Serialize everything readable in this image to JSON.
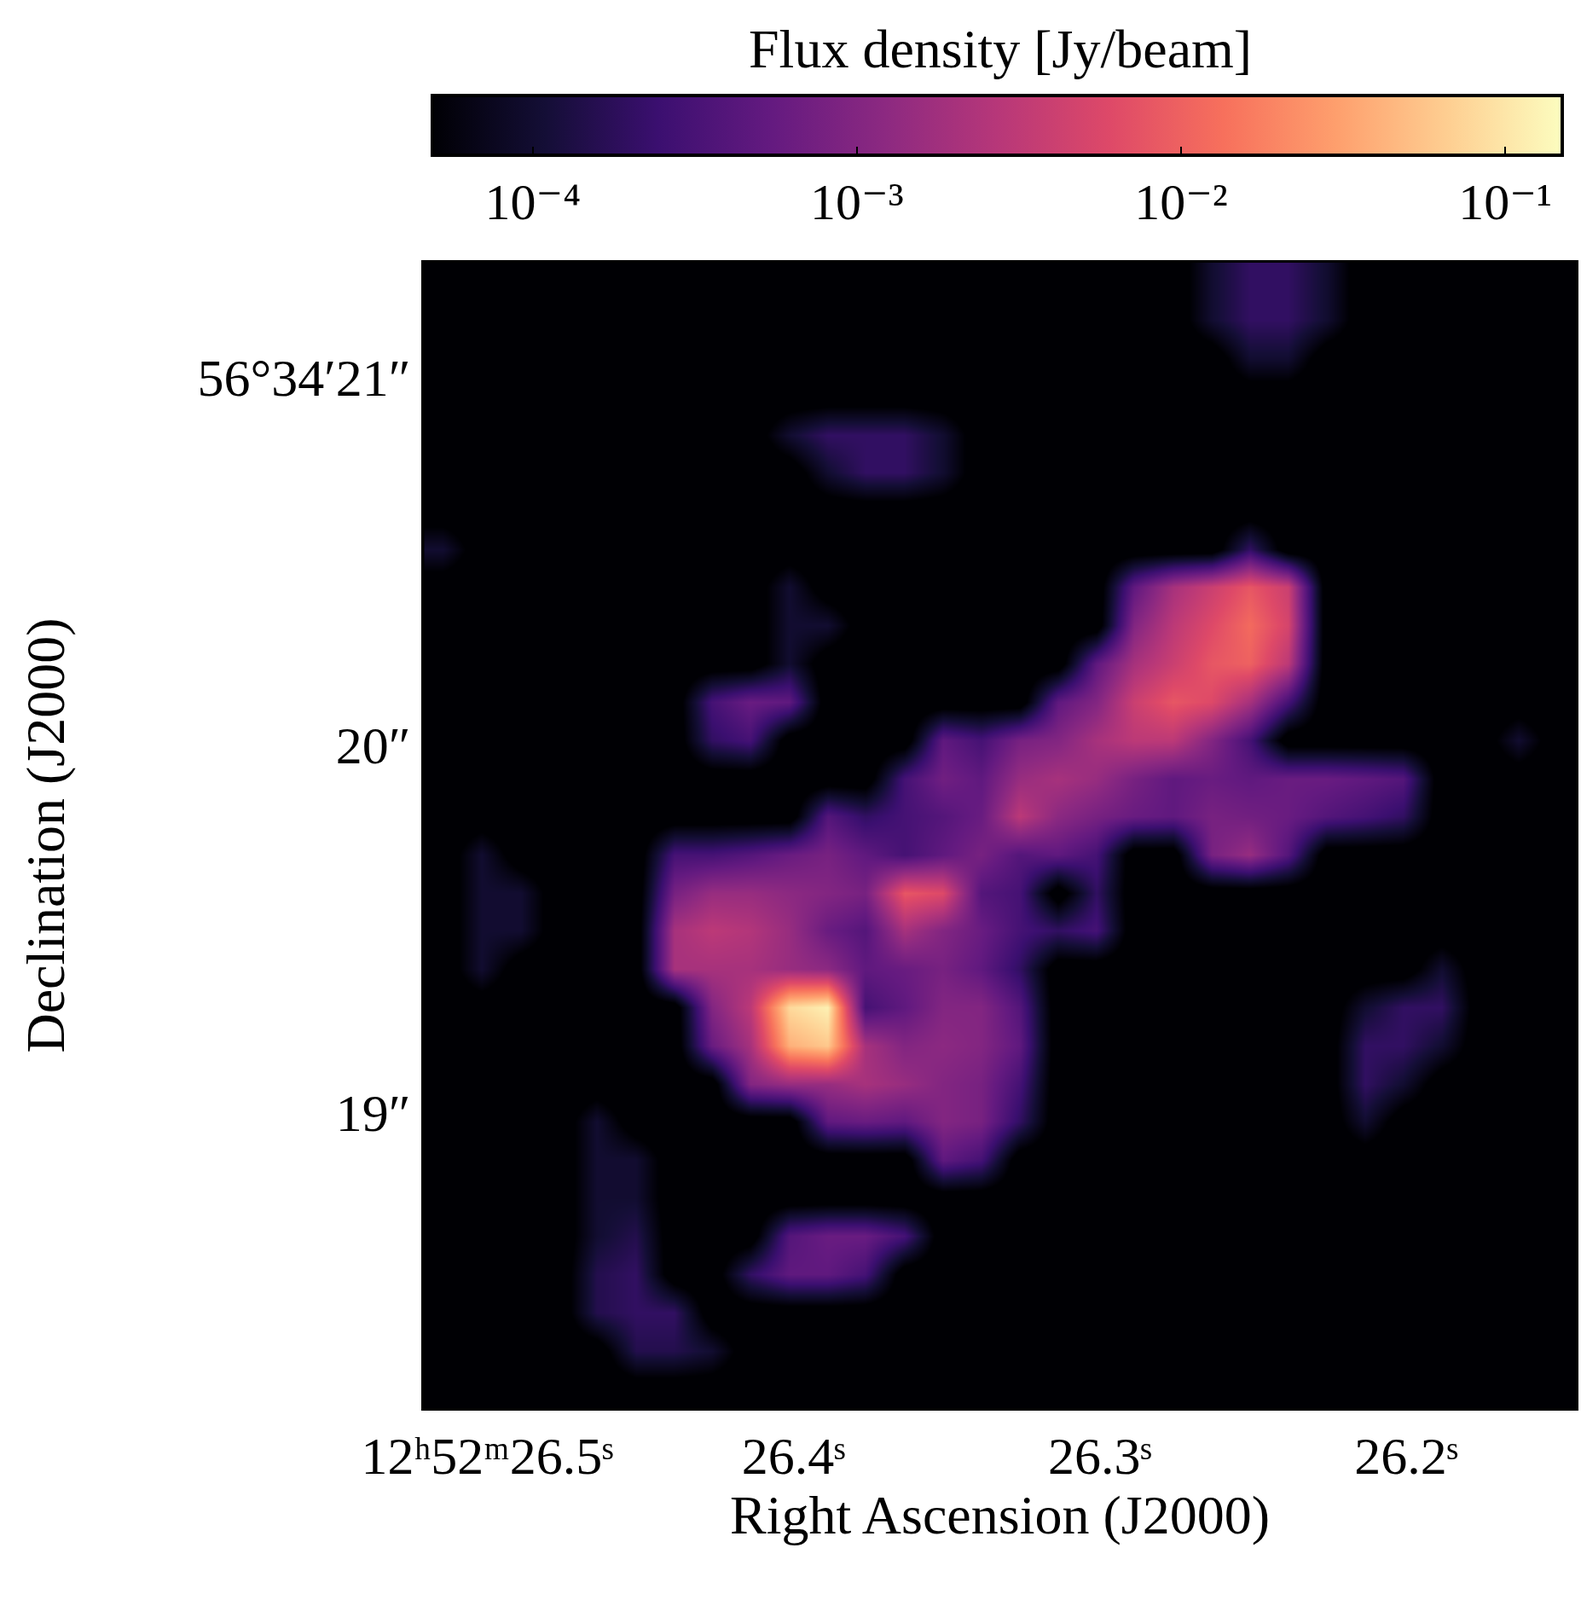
{
  "chart_data": {
    "type": "heatmap",
    "x_label": "Right Ascension (J2000)",
    "y_label": "Declination (J2000)",
    "xlim": [
      26.5207,
      26.1446
    ],
    "ylim": [
      18.195,
      21.312
    ],
    "xticks": [
      {
        "value": 26.5,
        "label": "12ʰ52ᵐ26.5ˢ"
      },
      {
        "value": 26.4,
        "label": "26.4ˢ"
      },
      {
        "value": 26.3,
        "label": "26.3ˢ"
      },
      {
        "value": 26.2,
        "label": "26.2ˢ"
      }
    ],
    "yticks": [
      {
        "value": 21,
        "label": "56°34′21″"
      },
      {
        "value": 20,
        "label": "20″"
      },
      {
        "value": 19,
        "label": "19″"
      }
    ],
    "grid": false,
    "x": [
      26.5143,
      26.5018,
      26.4892,
      26.4767,
      26.4642,
      26.4516,
      26.4391,
      26.4266,
      26.4141,
      26.4015,
      26.389,
      26.3765,
      26.3639,
      26.3514,
      26.3389,
      26.3263,
      26.3138,
      26.3013,
      26.2888,
      26.2762,
      26.2637,
      26.2512,
      26.2386,
      26.2261,
      26.2136,
      26.201,
      26.1885,
      26.176,
      26.1635,
      26.1509
    ],
    "y": [
      21.26,
      21.156,
      21.052,
      20.948,
      20.844,
      20.74,
      20.636,
      20.533,
      20.429,
      20.325,
      20.221,
      20.117,
      20.013,
      19.909,
      19.805,
      19.702,
      19.598,
      19.494,
      19.39,
      19.286,
      19.182,
      19.078,
      18.974,
      18.871,
      18.767,
      18.663,
      18.559,
      18.455,
      18.351,
      18.247
    ],
    "z": [
      [
        3e-05,
        3e-05,
        3e-05,
        3e-05,
        3e-05,
        3e-05,
        3e-05,
        3e-05,
        3e-05,
        3e-05,
        3e-05,
        3e-05,
        3e-05,
        3e-05,
        3e-05,
        3e-05,
        3e-05,
        3e-05,
        3e-05,
        3e-05,
        0.0001,
        0.0002,
        0.0002,
        0.0001,
        3e-05,
        3e-05,
        3e-05,
        3e-05,
        3e-05,
        3e-05
      ],
      [
        3e-05,
        3e-05,
        3e-05,
        3e-05,
        3e-05,
        3e-05,
        3e-05,
        3e-05,
        3e-05,
        3e-05,
        3e-05,
        3e-05,
        3e-05,
        3e-05,
        3e-05,
        3e-05,
        3e-05,
        3e-05,
        3e-05,
        3e-05,
        0.0001,
        0.0002,
        0.0002,
        0.0001,
        3e-05,
        3e-05,
        3e-05,
        3e-05,
        3e-05,
        3e-05
      ],
      [
        3e-05,
        3e-05,
        3e-05,
        3e-05,
        3e-05,
        3e-05,
        3e-05,
        3e-05,
        3e-05,
        3e-05,
        3e-05,
        3e-05,
        3e-05,
        3e-05,
        3e-05,
        3e-05,
        3e-05,
        3e-05,
        3e-05,
        3e-05,
        3e-05,
        0.0001,
        0.0001,
        3e-05,
        3e-05,
        3e-05,
        3e-05,
        3e-05,
        3e-05,
        3e-05
      ],
      [
        3e-05,
        3e-05,
        3e-05,
        3e-05,
        3e-05,
        3e-05,
        3e-05,
        3e-05,
        3e-05,
        3e-05,
        3e-05,
        3e-05,
        3e-05,
        3e-05,
        3e-05,
        3e-05,
        3e-05,
        3e-05,
        3e-05,
        3e-05,
        3e-05,
        3e-05,
        3e-05,
        3e-05,
        3e-05,
        3e-05,
        3e-05,
        3e-05,
        3e-05,
        3e-05
      ],
      [
        3e-05,
        3e-05,
        3e-05,
        3e-05,
        3e-05,
        3e-05,
        3e-05,
        3e-05,
        3e-05,
        0.0001,
        0.0002,
        0.0002,
        0.0002,
        0.0001,
        3e-05,
        3e-05,
        3e-05,
        3e-05,
        3e-05,
        3e-05,
        3e-05,
        3e-05,
        3e-05,
        3e-05,
        3e-05,
        3e-05,
        3e-05,
        3e-05,
        3e-05,
        3e-05
      ],
      [
        3e-05,
        3e-05,
        3e-05,
        3e-05,
        3e-05,
        3e-05,
        3e-05,
        3e-05,
        3e-05,
        3e-05,
        0.0001,
        0.0002,
        0.0002,
        0.0001,
        3e-05,
        3e-05,
        3e-05,
        3e-05,
        3e-05,
        3e-05,
        3e-05,
        3e-05,
        3e-05,
        3e-05,
        3e-05,
        3e-05,
        3e-05,
        3e-05,
        3e-05,
        3e-05
      ],
      [
        3e-05,
        3e-05,
        3e-05,
        3e-05,
        3e-05,
        3e-05,
        3e-05,
        3e-05,
        3e-05,
        3e-05,
        3e-05,
        3e-05,
        3e-05,
        3e-05,
        3e-05,
        3e-05,
        3e-05,
        3e-05,
        3e-05,
        3e-05,
        3e-05,
        3e-05,
        3e-05,
        3e-05,
        3e-05,
        3e-05,
        3e-05,
        3e-05,
        3e-05,
        3e-05
      ],
      [
        0.0001,
        3e-05,
        3e-05,
        3e-05,
        3e-05,
        3e-05,
        3e-05,
        3e-05,
        3e-05,
        3e-05,
        3e-05,
        3e-05,
        3e-05,
        3e-05,
        3e-05,
        3e-05,
        3e-05,
        3e-05,
        3e-05,
        3e-05,
        3e-05,
        0.0002,
        3e-05,
        3e-05,
        3e-05,
        3e-05,
        3e-05,
        3e-05,
        3e-05,
        3e-05
      ],
      [
        3e-05,
        3e-05,
        3e-05,
        3e-05,
        3e-05,
        3e-05,
        3e-05,
        3e-05,
        3e-05,
        0.0001,
        3e-05,
        3e-05,
        3e-05,
        3e-05,
        3e-05,
        3e-05,
        3e-05,
        3e-05,
        0.0005,
        0.002,
        0.004,
        0.008,
        0.004,
        3e-05,
        3e-05,
        3e-05,
        3e-05,
        3e-05,
        3e-05,
        3e-05
      ],
      [
        3e-05,
        3e-05,
        3e-05,
        3e-05,
        3e-05,
        3e-05,
        3e-05,
        3e-05,
        3e-05,
        0.0001,
        0.0001,
        3e-05,
        3e-05,
        3e-05,
        3e-05,
        3e-05,
        3e-05,
        3e-05,
        0.001,
        0.003,
        0.006,
        0.012,
        0.005,
        3e-05,
        3e-05,
        3e-05,
        3e-05,
        3e-05,
        3e-05,
        3e-05
      ],
      [
        3e-05,
        3e-05,
        3e-05,
        3e-05,
        3e-05,
        3e-05,
        3e-05,
        3e-05,
        3e-05,
        0.0001,
        3e-05,
        3e-05,
        3e-05,
        3e-05,
        3e-05,
        3e-05,
        3e-05,
        0.0005,
        0.002,
        0.004,
        0.008,
        0.01,
        0.003,
        3e-05,
        3e-05,
        3e-05,
        3e-05,
        3e-05,
        3e-05,
        3e-05
      ],
      [
        3e-05,
        3e-05,
        3e-05,
        3e-05,
        3e-05,
        3e-05,
        3e-05,
        0.0003,
        0.0006,
        0.0005,
        3e-05,
        3e-05,
        3e-05,
        3e-05,
        3e-05,
        3e-05,
        0.0005,
        0.001,
        0.004,
        0.008,
        0.006,
        0.002,
        0.0003,
        3e-05,
        3e-05,
        3e-05,
        3e-05,
        3e-05,
        3e-05,
        3e-05
      ],
      [
        3e-05,
        3e-05,
        3e-05,
        3e-05,
        3e-05,
        3e-05,
        3e-05,
        0.0002,
        0.0003,
        3e-05,
        3e-05,
        3e-05,
        3e-05,
        0.0005,
        0.0003,
        0.0008,
        0.001,
        0.002,
        0.003,
        0.003,
        0.001,
        0.0003,
        3e-05,
        3e-05,
        3e-05,
        3e-05,
        3e-05,
        3e-05,
        0.0001,
        3e-05
      ],
      [
        3e-05,
        3e-05,
        3e-05,
        3e-05,
        3e-05,
        3e-05,
        3e-05,
        3e-05,
        3e-05,
        3e-05,
        3e-05,
        3e-05,
        0.0003,
        0.0007,
        0.0005,
        0.0015,
        0.002,
        0.0015,
        0.0008,
        0.0005,
        0.0006,
        0.0005,
        0.0006,
        0.0006,
        0.0005,
        0.0004,
        3e-05,
        3e-05,
        3e-05,
        3e-05
      ],
      [
        3e-05,
        3e-05,
        3e-05,
        3e-05,
        3e-05,
        3e-05,
        3e-05,
        3e-05,
        3e-05,
        3e-05,
        0.0004,
        0.0002,
        0.0003,
        0.0004,
        0.0006,
        0.003,
        0.0012,
        0.0008,
        0.0006,
        0.0005,
        0.0008,
        0.0007,
        0.0006,
        0.0004,
        0.0003,
        0.0002,
        3e-05,
        3e-05,
        3e-05,
        3e-05
      ],
      [
        3e-05,
        0.0001,
        3e-05,
        3e-05,
        3e-05,
        3e-05,
        0.0003,
        0.0003,
        0.0004,
        0.0006,
        0.0008,
        0.0005,
        0.0003,
        0.0005,
        0.0008,
        0.0004,
        0.0005,
        0.0003,
        3e-05,
        3e-05,
        0.0008,
        0.0015,
        0.0004,
        3e-05,
        3e-05,
        3e-05,
        3e-05,
        3e-05,
        3e-05,
        3e-05
      ],
      [
        3e-05,
        0.0001,
        0.0001,
        3e-05,
        3e-05,
        3e-05,
        0.0008,
        0.0015,
        0.0015,
        0.0012,
        0.001,
        0.0008,
        0.008,
        0.006,
        0.0004,
        0.0003,
        3e-05,
        0.0002,
        3e-05,
        3e-05,
        3e-05,
        3e-05,
        3e-05,
        3e-05,
        3e-05,
        3e-05,
        3e-05,
        3e-05,
        3e-05,
        3e-05
      ],
      [
        3e-05,
        0.0001,
        0.0001,
        3e-05,
        3e-05,
        3e-05,
        0.002,
        0.003,
        0.0025,
        0.0015,
        0.0006,
        0.0004,
        0.002,
        0.001,
        0.0006,
        0.0003,
        0.0002,
        0.0003,
        3e-05,
        3e-05,
        3e-05,
        3e-05,
        3e-05,
        3e-05,
        3e-05,
        3e-05,
        3e-05,
        3e-05,
        3e-05,
        3e-05
      ],
      [
        3e-05,
        0.0001,
        3e-05,
        3e-05,
        3e-05,
        3e-05,
        0.002,
        0.002,
        0.002,
        0.0015,
        0.0012,
        0.0005,
        0.0006,
        0.0008,
        0.0005,
        0.0002,
        3e-05,
        3e-05,
        3e-05,
        3e-05,
        3e-05,
        3e-05,
        3e-05,
        3e-05,
        3e-05,
        3e-05,
        0.0001,
        3e-05,
        3e-05,
        3e-05
      ],
      [
        3e-05,
        3e-05,
        3e-05,
        3e-05,
        3e-05,
        3e-05,
        3e-05,
        0.001,
        0.003,
        0.08,
        0.12,
        0.0003,
        0.0005,
        0.001,
        0.001,
        0.0004,
        3e-05,
        3e-05,
        3e-05,
        3e-05,
        3e-05,
        3e-05,
        3e-05,
        3e-05,
        0.0001,
        0.0002,
        0.0002,
        3e-05,
        3e-05,
        3e-05
      ],
      [
        3e-05,
        3e-05,
        3e-05,
        3e-05,
        3e-05,
        3e-05,
        3e-05,
        0.0006,
        0.002,
        0.04,
        0.06,
        0.002,
        0.001,
        0.0012,
        0.001,
        0.0005,
        3e-05,
        3e-05,
        3e-05,
        3e-05,
        3e-05,
        3e-05,
        3e-05,
        3e-05,
        0.0002,
        0.0002,
        0.0001,
        3e-05,
        3e-05,
        3e-05
      ],
      [
        3e-05,
        3e-05,
        3e-05,
        3e-05,
        3e-05,
        3e-05,
        3e-05,
        3e-05,
        0.001,
        0.0015,
        0.0015,
        0.002,
        0.0015,
        0.001,
        0.0008,
        0.0003,
        3e-05,
        3e-05,
        3e-05,
        3e-05,
        3e-05,
        3e-05,
        3e-05,
        3e-05,
        0.0002,
        0.0001,
        3e-05,
        3e-05,
        3e-05,
        3e-05
      ],
      [
        3e-05,
        3e-05,
        3e-05,
        3e-05,
        0.0001,
        3e-05,
        3e-05,
        3e-05,
        3e-05,
        3e-05,
        0.0005,
        0.0006,
        0.0005,
        0.001,
        0.0008,
        0.0002,
        3e-05,
        3e-05,
        3e-05,
        3e-05,
        3e-05,
        3e-05,
        3e-05,
        3e-05,
        0.0001,
        3e-05,
        3e-05,
        3e-05,
        3e-05,
        3e-05
      ],
      [
        3e-05,
        3e-05,
        3e-05,
        3e-05,
        0.0001,
        0.0001,
        3e-05,
        3e-05,
        3e-05,
        3e-05,
        3e-05,
        3e-05,
        3e-05,
        0.0005,
        0.0003,
        3e-05,
        3e-05,
        3e-05,
        3e-05,
        3e-05,
        3e-05,
        3e-05,
        3e-05,
        3e-05,
        3e-05,
        3e-05,
        3e-05,
        3e-05,
        3e-05,
        3e-05
      ],
      [
        3e-05,
        3e-05,
        3e-05,
        3e-05,
        0.0001,
        0.0001,
        3e-05,
        3e-05,
        3e-05,
        3e-05,
        3e-05,
        3e-05,
        3e-05,
        3e-05,
        3e-05,
        3e-05,
        3e-05,
        3e-05,
        3e-05,
        3e-05,
        3e-05,
        3e-05,
        3e-05,
        3e-05,
        3e-05,
        3e-05,
        3e-05,
        3e-05,
        3e-05,
        3e-05
      ],
      [
        3e-05,
        3e-05,
        3e-05,
        3e-05,
        0.0001,
        0.00015,
        3e-05,
        3e-05,
        3e-05,
        0.0004,
        0.0006,
        0.0006,
        0.0003,
        3e-05,
        3e-05,
        3e-05,
        3e-05,
        3e-05,
        3e-05,
        3e-05,
        3e-05,
        3e-05,
        3e-05,
        3e-05,
        3e-05,
        3e-05,
        3e-05,
        3e-05,
        3e-05,
        3e-05
      ],
      [
        3e-05,
        3e-05,
        3e-05,
        3e-05,
        0.00015,
        0.0002,
        3e-05,
        3e-05,
        0.0002,
        0.0005,
        0.0005,
        0.0003,
        3e-05,
        3e-05,
        3e-05,
        3e-05,
        3e-05,
        3e-05,
        3e-05,
        3e-05,
        3e-05,
        3e-05,
        3e-05,
        3e-05,
        3e-05,
        3e-05,
        3e-05,
        3e-05,
        3e-05,
        3e-05
      ],
      [
        3e-05,
        3e-05,
        3e-05,
        3e-05,
        0.00015,
        0.0002,
        0.0002,
        3e-05,
        3e-05,
        3e-05,
        3e-05,
        3e-05,
        3e-05,
        3e-05,
        3e-05,
        3e-05,
        3e-05,
        3e-05,
        3e-05,
        3e-05,
        3e-05,
        3e-05,
        3e-05,
        3e-05,
        3e-05,
        3e-05,
        3e-05,
        3e-05,
        3e-05,
        3e-05
      ],
      [
        3e-05,
        3e-05,
        3e-05,
        3e-05,
        3e-05,
        0.00015,
        0.00015,
        0.0001,
        3e-05,
        3e-05,
        3e-05,
        3e-05,
        3e-05,
        3e-05,
        3e-05,
        3e-05,
        3e-05,
        3e-05,
        3e-05,
        3e-05,
        3e-05,
        3e-05,
        3e-05,
        3e-05,
        3e-05,
        3e-05,
        3e-05,
        3e-05,
        3e-05,
        3e-05
      ],
      [
        3e-05,
        3e-05,
        3e-05,
        3e-05,
        3e-05,
        3e-05,
        3e-05,
        3e-05,
        3e-05,
        3e-05,
        3e-05,
        3e-05,
        3e-05,
        3e-05,
        3e-05,
        3e-05,
        3e-05,
        3e-05,
        3e-05,
        3e-05,
        3e-05,
        3e-05,
        3e-05,
        3e-05,
        3e-05,
        3e-05,
        3e-05,
        3e-05,
        3e-05,
        3e-05
      ]
    ],
    "colorbar": {
      "title": "Flux density [Jy/beam]",
      "log": true,
      "zlim": [
        4.9e-05,
        0.15
      ],
      "ticks": [
        {
          "value": 0.0001,
          "label": "10⁻⁴"
        },
        {
          "value": 0.001,
          "label": "10⁻³"
        },
        {
          "value": 0.01,
          "label": "10⁻²"
        },
        {
          "value": 0.1,
          "label": "10⁻¹"
        }
      ]
    }
  }
}
